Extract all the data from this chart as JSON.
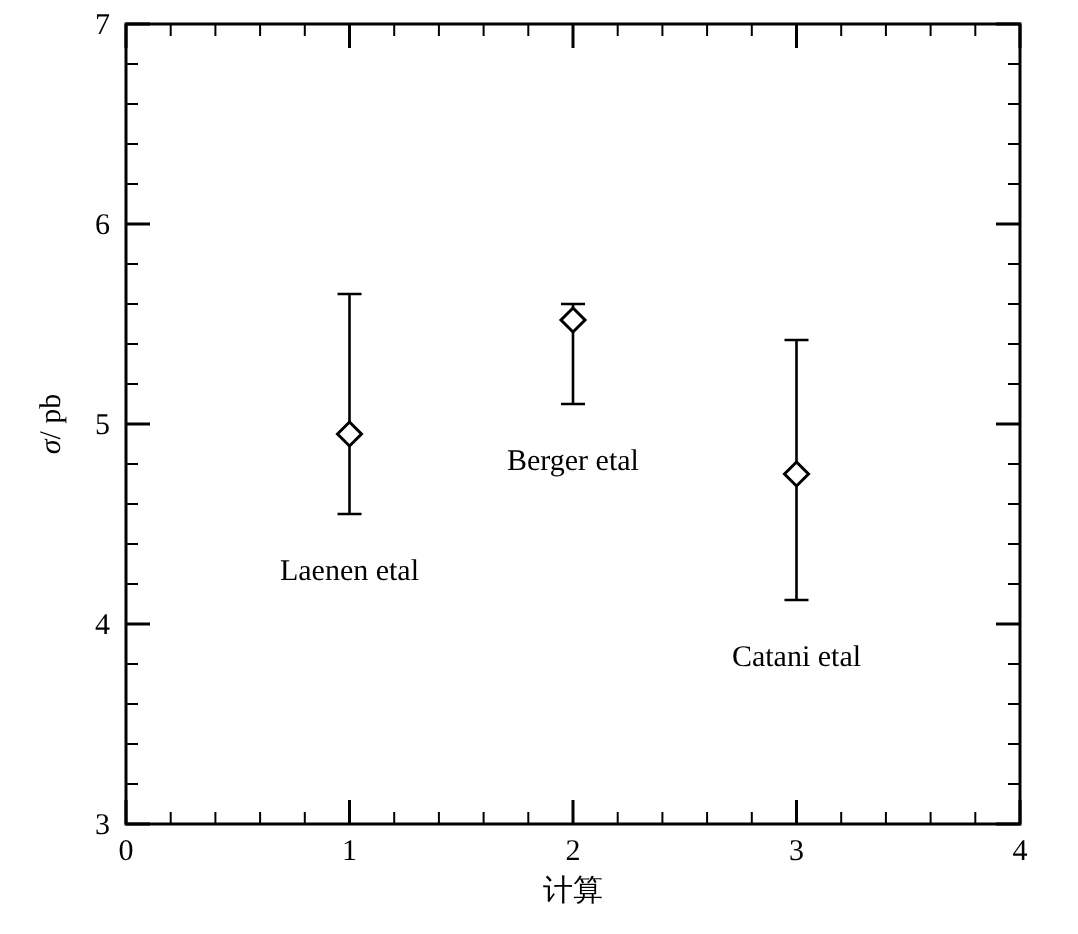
{
  "chart_data": {
    "type": "scatter",
    "xlabel": "计算",
    "ylabel": "*σ*/ pb",
    "x": [
      1,
      2,
      3
    ],
    "values": [
      4.95,
      5.52,
      4.75
    ],
    "errors": [
      [
        4.55,
        5.65
      ],
      [
        5.1,
        5.6
      ],
      [
        4.12,
        5.42
      ]
    ],
    "color": "#000000",
    "marker": "diamond",
    "xlim": [
      0,
      4
    ],
    "ylim": [
      3,
      7
    ],
    "xticks": [
      0,
      1,
      2,
      3,
      4
    ],
    "yticks": [
      3,
      4,
      5,
      6,
      7
    ],
    "grid": false,
    "annotations": [
      "Laenen etal",
      "Berger etal",
      "Catani etal"
    ]
  }
}
